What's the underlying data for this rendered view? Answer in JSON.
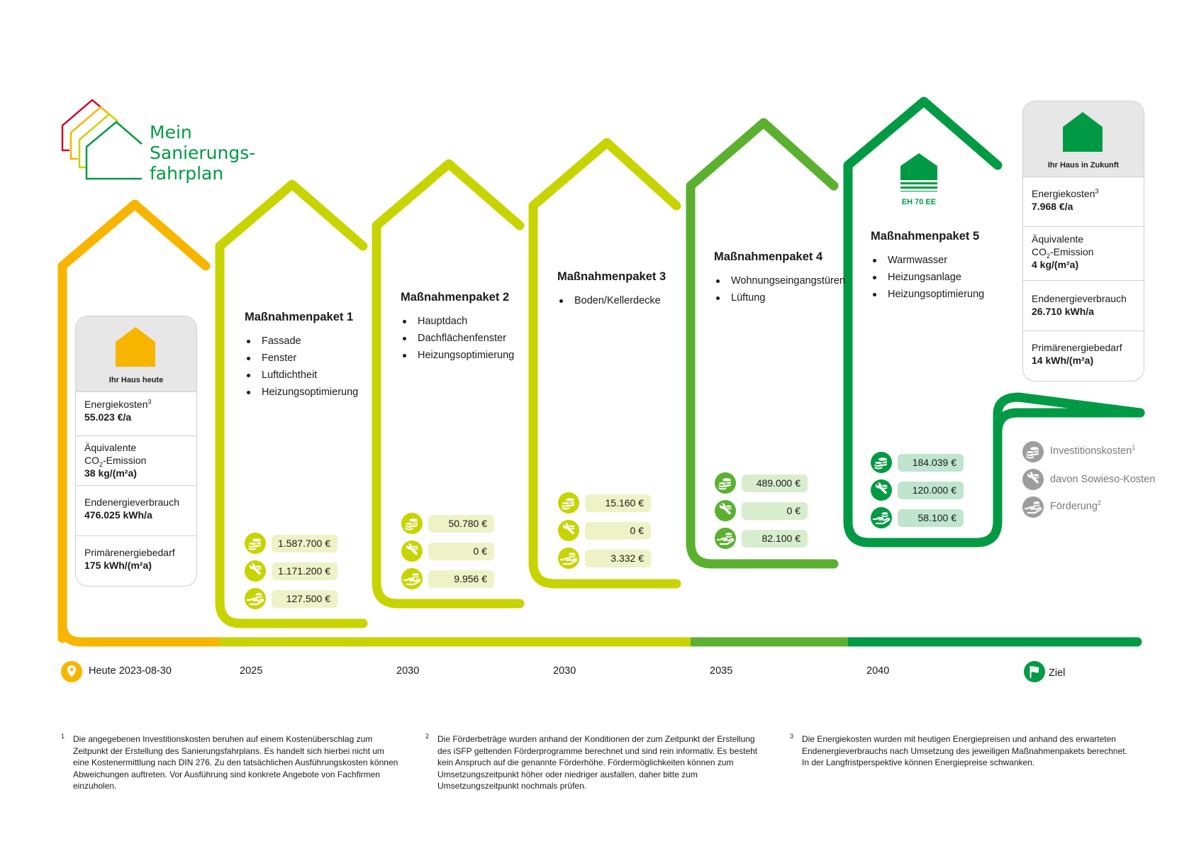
{
  "title": {
    "line1": "Mein",
    "line2": "Sanierungs-",
    "line3": "fahrplan"
  },
  "today_card": {
    "caption": "Ihr Haus heute",
    "energiekosten_label": "Energiekosten",
    "energiekosten_sup": "3",
    "energiekosten_value": "55.023 €/a",
    "co2_label_1": "Äquivalente",
    "co2_label_2a": "CO",
    "co2_label_2sub": "2",
    "co2_label_2b": "-Emission",
    "co2_value": "38 kg/(m²a)",
    "endenergie_label": "Endenergieverbrauch",
    "endenergie_value": "476.025 kWh/a",
    "primaer_label": "Primärenergiebedarf",
    "primaer_value": "175 kWh/(m²a)",
    "house_color": "#f7b500"
  },
  "future_card": {
    "caption": "Ihr Haus in Zukunft",
    "energiekosten_label": "Energiekosten",
    "energiekosten_sup": "3",
    "energiekosten_value": "7.968 €/a",
    "co2_label_1": "Äquivalente",
    "co2_label_2a": "CO",
    "co2_label_2sub": "2",
    "co2_label_2b": "-Emission",
    "co2_value": "4 kg/(m²a)",
    "endenergie_label": "Endenergieverbrauch",
    "endenergie_value": "26.710 kWh/a",
    "primaer_label": "Primärenergiebedarf",
    "primaer_value": "14 kWh/(m²a)",
    "house_color": "#009a44"
  },
  "eh_badge": "EH 70 EE",
  "packages": [
    {
      "title": "Maßnahmenpaket 1",
      "items": [
        "Fassade",
        "Fenster",
        "Luftdichtheit",
        "Heizungsoptimierung"
      ],
      "invest": "1.587.700 €",
      "sowieso": "1.171.200 €",
      "foerderung": "127.500 €",
      "color": "#c8d400"
    },
    {
      "title": "Maßnahmenpaket 2",
      "items": [
        "Hauptdach",
        "Dachflächenfenster",
        "Heizungsoptimierung"
      ],
      "invest": "50.780 €",
      "sowieso": "0 €",
      "foerderung": "9.956 €",
      "color": "#c8d400"
    },
    {
      "title": "Maßnahmenpaket 3",
      "items": [
        "Boden/Kellerdecke"
      ],
      "invest": "15.160 €",
      "sowieso": "0 €",
      "foerderung": "3.332 €",
      "color": "#c8d400"
    },
    {
      "title": "Maßnahmenpaket 4",
      "items": [
        "Wohnungseingangstüren",
        "Lüftung"
      ],
      "invest": "489.000 €",
      "sowieso": "0 €",
      "foerderung": "82.100 €",
      "color": "#5bb030"
    },
    {
      "title": "Maßnahmenpaket 5",
      "items": [
        "Warmwasser",
        "Heizungsanlage",
        "Heizungsoptimierung"
      ],
      "invest": "184.039 €",
      "sowieso": "120.000 €",
      "foerderung": "58.100 €",
      "color": "#009a44"
    }
  ],
  "timeline": {
    "today": "Heute 2023-08-30",
    "y1": "2025",
    "y2": "2030",
    "y3": "2030",
    "y4": "2035",
    "y5": "2040",
    "goal": "Ziel"
  },
  "legend": {
    "invest": "Investitionskosten",
    "invest_sup": "1",
    "sowieso": "davon Sowieso-Kosten",
    "foerderung": "Förderung",
    "foerderung_sup": "2"
  },
  "footnotes": {
    "n1": "1",
    "t1": "Die angegebenen Investitionskosten beruhen auf einem Kostenüberschlag zum Zeitpunkt der Erstellung des Sanierungsfahrplans. Es handelt sich hierbei nicht um eine Kostenermittlung nach DIN 276. Zu den tatsächlichen Ausführungskosten können Abweichungen auftreten. Vor Ausführung sind konkrete Angebote von Fachfirmen einzuholen.",
    "n2": "2",
    "t2": "Die Förderbeträge wurden anhand der Konditionen der zum Zeitpunkt der Erstellung des iSFP geltenden Förderprogramme berechnet und sind rein informativ. Es besteht kein Anspruch auf die genannte Förderhöhe. Fördermöglichkeiten können zum Umsetzungszeitpunkt höher oder niedriger ausfallen, daher bitte zum Umsetzungszeitpunkt nochmals prüfen.",
    "n3": "3",
    "t3": "Die Energiekosten wurden mit heutigen Energiepreisen und anhand des erwarteten Endenergieverbrauchs nach Umsetzung des jeweiligen Maßnahmenpakets berechnet. In der Langfristperspektive können Energiepreise schwanken."
  },
  "colors": {
    "orange": "#f7b500",
    "lime": "#c8d400",
    "green_mid": "#5bb030",
    "green_dark": "#009a44",
    "grey": "#9d9d9d"
  }
}
